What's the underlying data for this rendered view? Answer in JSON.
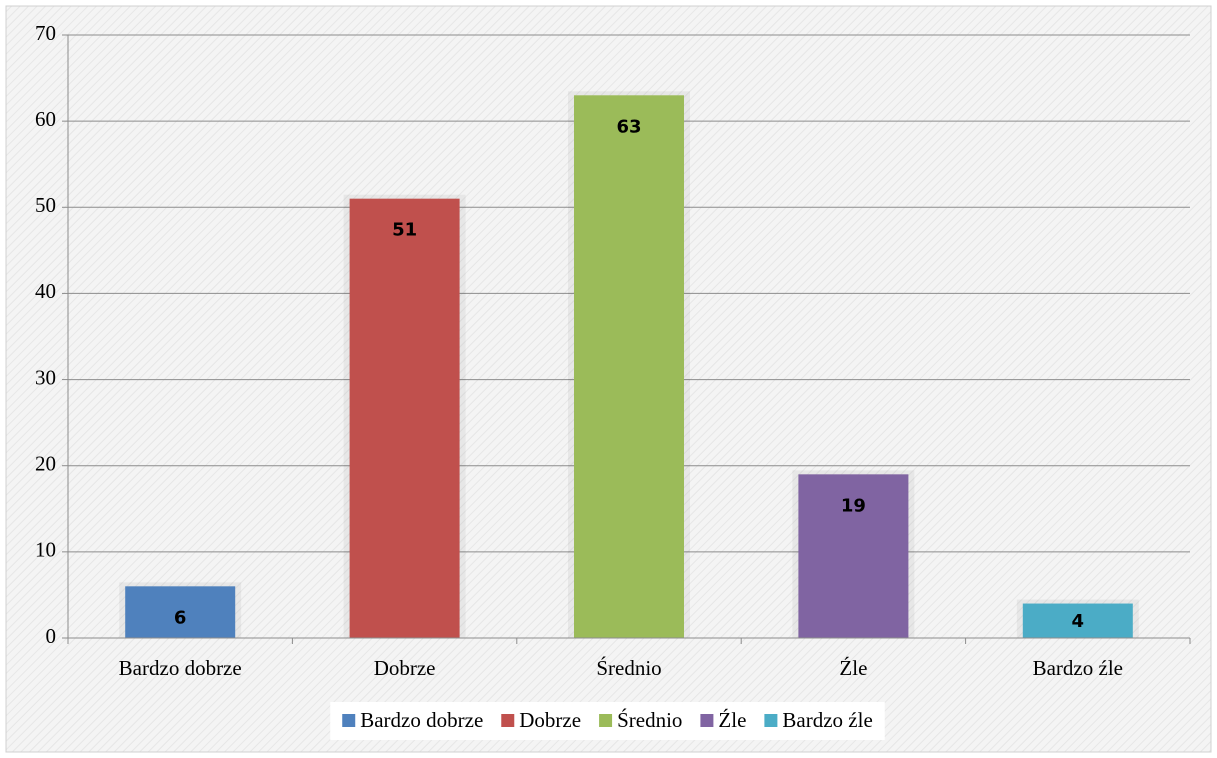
{
  "chart_data": {
    "type": "bar",
    "categories": [
      "Bardzo dobrze",
      "Dobrze",
      "Średnio",
      "Źle",
      "Bardzo źle"
    ],
    "values": [
      6,
      51,
      63,
      19,
      4
    ],
    "colors": [
      "#4f81bd",
      "#c0504d",
      "#9bbb59",
      "#8064a2",
      "#4bacc6"
    ],
    "ylim": [
      0,
      70
    ],
    "yticks": [
      0,
      10,
      20,
      30,
      40,
      50,
      60,
      70
    ],
    "grid": true,
    "legend": "bottom"
  }
}
